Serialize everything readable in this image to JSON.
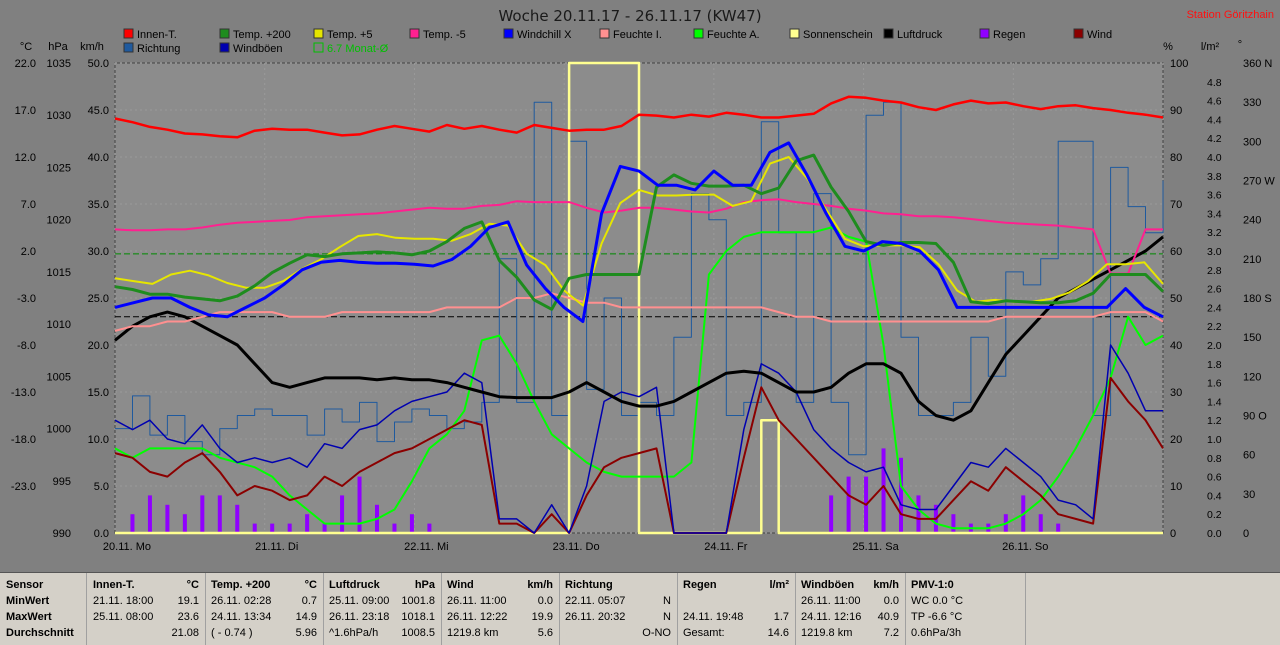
{
  "title": "Woche 20.11.17 - 26.11.17 (KW47)",
  "station": "Station Göritzhain",
  "colors": {
    "inner": "#ff0000",
    "temp200": "#1e8c1e",
    "temp5": "#e6e600",
    "tempm5": "#ff2090",
    "windchill": "#0000ff",
    "feuchteI": "#ff9090",
    "feuchteA": "#00ff00",
    "sonne": "#ffff90",
    "luftdruck": "#000000",
    "regen": "#9000ff",
    "wind": "#8b0000",
    "richtung": "#1f5a9e",
    "windboen": "#0000b0",
    "monat": "#00c000"
  },
  "legend": [
    {
      "label": "Innen-T.",
      "color": "#ff0000"
    },
    {
      "label": "Temp. +200",
      "color": "#1e8c1e"
    },
    {
      "label": "Temp. +5",
      "color": "#e6e600"
    },
    {
      "label": "Temp. -5",
      "color": "#ff2090"
    },
    {
      "label": "Windchill X",
      "color": "#0000ff"
    },
    {
      "label": "Feuchte I.",
      "color": "#ff9090"
    },
    {
      "label": "Feuchte A.",
      "color": "#00ff00"
    },
    {
      "label": "Sonnenschein",
      "color": "#ffff90"
    },
    {
      "label": "Luftdruck",
      "color": "#000000"
    },
    {
      "label": "Regen",
      "color": "#9000ff"
    },
    {
      "label": "Wind",
      "color": "#8b0000"
    },
    {
      "label": "Richtung",
      "color": "#1f5a9e"
    },
    {
      "label": "Windböen",
      "color": "#0000b0"
    },
    {
      "label": "6.7 Monat-Ø",
      "color": "#00c000"
    }
  ],
  "units": [
    "°C",
    "hPa",
    "km/h",
    "%",
    "l/m²",
    "°"
  ],
  "chart_data": {
    "type": "line",
    "x_labels": [
      "20.11. Mo",
      "21.11. Di",
      "22.11. Mi",
      "23.11. Do",
      "24.11. Fr",
      "25.11. Sa",
      "26.11. So"
    ],
    "axis_temp": [
      "22.0",
      "17.0",
      "12.0",
      "7.0",
      "2.0",
      "-3.0",
      "-8.0",
      "-13.0",
      "-18.0",
      "-23.0"
    ],
    "axis_hpa": [
      "1035",
      "1030",
      "1025",
      "1020",
      "1015",
      "1010",
      "1005",
      "1000",
      "995",
      "990"
    ],
    "axis_kmh": [
      "50.0",
      "45.0",
      "40.0",
      "35.0",
      "30.0",
      "25.0",
      "20.0",
      "15.0",
      "10.0",
      "5.0",
      "0.0"
    ],
    "axis_pct": [
      "100",
      "90",
      "80",
      "70",
      "60",
      "50",
      "40",
      "30",
      "20",
      "10",
      "0"
    ],
    "axis_rain": [
      "4.8",
      "4.6",
      "4.4",
      "4.2",
      "4.0",
      "3.8",
      "3.6",
      "3.4",
      "3.2",
      "3.0",
      "2.8",
      "2.6",
      "2.4",
      "2.2",
      "2.0",
      "1.8",
      "1.6",
      "1.4",
      "1.2",
      "1.0",
      "0.8",
      "0.6",
      "0.4",
      "0.2",
      "0.0"
    ],
    "axis_deg": [
      "360 N",
      "330",
      "300",
      "270 W",
      "240",
      "210",
      "180 S",
      "150",
      "120",
      "90 O",
      "60",
      "30",
      "0"
    ],
    "temp_range": [
      -23,
      27
    ],
    "hpa_range": [
      990,
      1040
    ],
    "kmh_range": [
      0,
      50
    ],
    "pct_range": [
      0,
      100
    ],
    "deg_range": [
      0,
      360
    ],
    "month_avg_temp": 6.7,
    "series": [
      {
        "name": "Innen-T.",
        "key": "inner",
        "unit": "°C",
        "values": [
          21.1,
          20.7,
          20.2,
          19.9,
          19.5,
          19.4,
          19.2,
          19.1,
          19.8,
          20.0,
          19.9,
          19.9,
          19.6,
          19.3,
          19.4,
          19.9,
          20.3,
          20.0,
          19.7,
          20.4,
          20.0,
          20.3,
          19.9,
          19.6,
          20.4,
          20.1,
          19.8,
          19.9,
          19.9,
          20.3,
          21.5,
          21.4,
          21.2,
          21.5,
          21.3,
          21.7,
          21.5,
          21.2,
          21.2,
          21.4,
          21.6,
          22.7,
          23.4,
          23.3,
          23.0,
          22.8,
          22.3,
          22.0,
          22.6,
          23.0,
          22.7,
          22.8,
          22.4,
          22.1,
          22.4,
          22.5,
          22.2,
          22.0,
          21.7,
          21.5,
          21.2
        ]
      },
      {
        "name": "Temp. +200",
        "key": "temp200",
        "unit": "°C",
        "values": [
          3.2,
          2.9,
          2.4,
          2.4,
          2.1,
          1.9,
          1.7,
          2.2,
          3.3,
          4.7,
          5.7,
          6.6,
          6.4,
          6.7,
          6.8,
          6.9,
          6.8,
          6.6,
          7.0,
          8.0,
          9.4,
          10.1,
          6.0,
          4.2,
          1.8,
          0.8,
          4.1,
          4.5,
          4.5,
          4.5,
          4.5,
          13.8,
          15.1,
          14.2,
          13.9,
          13.9,
          14.0,
          13.1,
          13.7,
          16.6,
          17.2,
          13.8,
          11.2,
          8.0,
          7.6,
          7.9,
          7.9,
          7.8,
          5.8,
          1.6,
          1.4,
          1.7,
          1.6,
          1.5,
          1.5,
          1.7,
          2.5,
          4.5,
          4.5,
          4.5,
          2.7
        ]
      },
      {
        "name": "Temp. +5",
        "key": "temp5",
        "unit": "°C",
        "values": [
          4.1,
          3.8,
          3.5,
          4.5,
          4.9,
          4.4,
          3.6,
          3.1,
          3.1,
          3.8,
          5.1,
          6.1,
          7.4,
          8.6,
          8.8,
          8.4,
          8.3,
          8.3,
          8.1,
          8.8,
          9.9,
          9.7,
          6.7,
          5.5,
          2.8,
          1.2,
          7.8,
          12.1,
          13.5,
          12.9,
          12.9,
          13.0,
          13.0,
          11.8,
          12.3,
          16.3,
          17.0,
          14.7,
          11.4,
          8.3,
          7.5,
          7.6,
          7.6,
          7.4,
          5.6,
          2.8,
          1.6,
          1.8,
          1.6,
          1.6,
          1.9,
          2.6,
          3.8,
          5.6,
          5.6,
          5.8,
          3.5
        ]
      },
      {
        "name": "Temp. -5",
        "key": "tempm5",
        "unit": "°C",
        "values": [
          9.3,
          9.2,
          9.2,
          9.3,
          9.3,
          9.5,
          9.8,
          10.0,
          10.1,
          10.2,
          10.3,
          10.6,
          10.7,
          10.8,
          10.9,
          11.0,
          11.2,
          11.4,
          11.6,
          11.5,
          11.5,
          11.8,
          11.9,
          12.3,
          12.2,
          12.2,
          12.2,
          11.6,
          11.1,
          11.3,
          11.6,
          11.6,
          11.4,
          11.2,
          11.1,
          11.5,
          12.2,
          12.4,
          12.5,
          12.2,
          12.0,
          11.8,
          11.5,
          11.3,
          11.0,
          10.9,
          10.7,
          10.7,
          10.6,
          10.4,
          10.2,
          10.0,
          9.9,
          9.8,
          9.7,
          9.5,
          9.3,
          4.6,
          4.6,
          9.3,
          9.3
        ]
      },
      {
        "name": "Windchill X",
        "key": "windchill",
        "unit": "°C",
        "values": [
          1.0,
          1.5,
          2.0,
          2.0,
          1.0,
          0.2,
          0.0,
          1.0,
          2.0,
          3.4,
          5.0,
          5.8,
          6.0,
          5.8,
          5.7,
          5.7,
          5.6,
          5.4,
          6.1,
          7.5,
          9.5,
          10.1,
          5.5,
          3.0,
          1.0,
          -0.5,
          11.0,
          16.0,
          15.5,
          14.0,
          14.0,
          13.5,
          15.5,
          14.0,
          14.0,
          17.5,
          18.5,
          15.0,
          11.0,
          7.5,
          7.0,
          8.0,
          7.8,
          7.0,
          5.0,
          1.0,
          1.0,
          1.0,
          1.0,
          1.0,
          1.0,
          1.0,
          1.0,
          1.0,
          3.0,
          1.0,
          0.0
        ]
      },
      {
        "name": "Feuchte I.",
        "key": "feuchteI",
        "unit": "%",
        "values": [
          43,
          44,
          44,
          45,
          45,
          46,
          47,
          47,
          47,
          47,
          46,
          46,
          46,
          47,
          47,
          47,
          47,
          47,
          47,
          48,
          48,
          48,
          48,
          50,
          50,
          51,
          50,
          49,
          49,
          48,
          48,
          48,
          48,
          48,
          48,
          48,
          48,
          48,
          47,
          46,
          46,
          45,
          45,
          45,
          45,
          45,
          45,
          45,
          45,
          45,
          45,
          46,
          46,
          46,
          46,
          46,
          46,
          47,
          47,
          47,
          45
        ]
      },
      {
        "name": "Feuchte A.",
        "key": "feuchteA",
        "unit": "%",
        "values": [
          18,
          16,
          18,
          18,
          18,
          18,
          16,
          15,
          14,
          12,
          8,
          5,
          2,
          2,
          2,
          3,
          5,
          11,
          18,
          21,
          26,
          41,
          42,
          36,
          28,
          21,
          18,
          15,
          13,
          12,
          12,
          12,
          12,
          15,
          55,
          60,
          63,
          64,
          64,
          64,
          64,
          65,
          63,
          62,
          40,
          10,
          5,
          2,
          1,
          1,
          1,
          2,
          4,
          7,
          12,
          18,
          25,
          33,
          46,
          40,
          42
        ]
      },
      {
        "name": "Sonnenschein",
        "key": "sonne",
        "unit": "%",
        "values": [
          0,
          0,
          0,
          0,
          0,
          0,
          0,
          0,
          0,
          0,
          0,
          0,
          0,
          0,
          0,
          0,
          0,
          0,
          0,
          0,
          0,
          0,
          0,
          0,
          0,
          0,
          100,
          100,
          100,
          100,
          0,
          0,
          0,
          0,
          0,
          0,
          0,
          24,
          0,
          0,
          0,
          0,
          0,
          0,
          0,
          0,
          0,
          0,
          0,
          0,
          0,
          0,
          0,
          0,
          0,
          0,
          0,
          0,
          0,
          0,
          0
        ]
      },
      {
        "name": "Luftdruck",
        "key": "luftdruck",
        "unit": "hPa",
        "values": [
          1010.5,
          1012,
          1013,
          1013.5,
          1013,
          1012,
          1011,
          1010,
          1008,
          1006,
          1005.5,
          1006,
          1006.5,
          1006.5,
          1006.5,
          1006.3,
          1006.5,
          1006.3,
          1006.3,
          1006,
          1005.5,
          1005,
          1004.5,
          1004.4,
          1004.4,
          1004.4,
          1005,
          1006,
          1005,
          1004,
          1003.5,
          1003.5,
          1004,
          1005,
          1006,
          1007,
          1007.2,
          1007,
          1006,
          1005,
          1005,
          1005.5,
          1007,
          1008,
          1008,
          1007,
          1004,
          1002.5,
          1002,
          1003,
          1006,
          1009,
          1011,
          1013,
          1015,
          1016,
          1017,
          1018,
          1019,
          1020,
          1021.5
        ]
      },
      {
        "name": "Regen",
        "key": "regen",
        "unit": "l/m²",
        "values": [
          0,
          0.2,
          0.4,
          0.3,
          0.2,
          0.4,
          0.4,
          0.3,
          0.1,
          0.1,
          0.1,
          0.2,
          0.1,
          0.4,
          0.6,
          0.3,
          0.1,
          0.2,
          0.1,
          0,
          0,
          0,
          0,
          0,
          0,
          0,
          0,
          0,
          0,
          0,
          0,
          0,
          0,
          0,
          0,
          0,
          0,
          0,
          0,
          0,
          0,
          0.4,
          0.6,
          0.6,
          0.9,
          0.8,
          0.4,
          0.3,
          0.2,
          0.1,
          0.1,
          0.2,
          0.4,
          0.2,
          0.1,
          0,
          0,
          0,
          0,
          0,
          0
        ]
      },
      {
        "name": "Wind",
        "key": "wind",
        "unit": "km/h",
        "values": [
          8.5,
          8,
          6.5,
          6,
          7.5,
          8.5,
          6.5,
          4,
          5,
          4.5,
          3.5,
          4,
          6,
          5,
          6.5,
          7.5,
          8.5,
          9,
          10,
          11,
          12,
          11.5,
          1,
          1,
          0,
          2,
          0,
          4,
          7,
          8,
          8.5,
          9,
          0,
          0,
          0,
          0,
          8,
          15.5,
          12,
          10,
          8,
          6,
          4,
          3,
          5,
          2,
          1.5,
          1.5,
          3.5,
          5.5,
          4.5,
          7,
          5.5,
          4,
          2,
          1.5,
          1,
          16.5,
          14,
          12,
          9
        ]
      },
      {
        "name": "Richtung",
        "key": "richtung",
        "unit": "°",
        "values": [
          80,
          105,
          75,
          90,
          70,
          60,
          80,
          90,
          95,
          90,
          90,
          75,
          95,
          85,
          100,
          70,
          85,
          95,
          90,
          80,
          85,
          100,
          210,
          100,
          330,
          90,
          300,
          110,
          180,
          90,
          100,
          90,
          150,
          260,
          240,
          90,
          100,
          315,
          230,
          100,
          260,
          100,
          60,
          320,
          330,
          150,
          90,
          90,
          100,
          150,
          120,
          200,
          190,
          210,
          300,
          300,
          90,
          280,
          250,
          230,
          270
        ]
      },
      {
        "name": "Windböen",
        "key": "windboen",
        "unit": "km/h",
        "values": [
          12,
          11,
          12,
          10,
          9.5,
          11.5,
          9,
          7.5,
          8,
          7.5,
          8,
          7,
          9.5,
          9,
          11,
          11.5,
          13,
          14,
          14.5,
          15,
          17,
          16,
          1.5,
          1.5,
          0,
          3,
          0,
          5,
          14,
          15,
          14.5,
          15.5,
          0,
          0,
          0,
          0,
          11,
          18,
          17,
          15,
          11,
          9,
          7.5,
          6.5,
          7,
          3,
          2.5,
          2.5,
          5,
          7.5,
          7,
          9,
          7.5,
          6,
          3.5,
          3,
          1.5,
          20,
          17,
          13,
          13
        ]
      }
    ]
  },
  "table": {
    "row_labels": [
      "Sensor",
      "MinWert",
      "MaxWert",
      "Durchschnitt"
    ],
    "columns": [
      {
        "name": "Innen-T.",
        "unit": "°C",
        "min_t": "21.11.  18:00",
        "min_v": "19.1",
        "max_t": "25.11.  08:00",
        "max_v": "23.6",
        "avg_t": "",
        "avg_v": "21.08"
      },
      {
        "name": "Temp. +200",
        "unit": "°C",
        "min_t": "26.11.  02:28",
        "min_v": "0.7",
        "max_t": "24.11.  13:34",
        "max_v": "14.9",
        "avg_t": "( - 0.74 )",
        "avg_v": "5.96"
      },
      {
        "name": "Luftdruck",
        "unit": "hPa",
        "min_t": "25.11.  09:00",
        "min_v": "1001.8",
        "max_t": "26.11.  23:18",
        "max_v": "1018.1",
        "avg_t": "^1.6hPa/h",
        "avg_v": "1008.5"
      },
      {
        "name": "Wind",
        "unit": "km/h",
        "min_t": "26.11.  11:00",
        "min_v": "0.0",
        "max_t": "26.11.  12:22",
        "max_v": "19.9",
        "avg_t": "1219.8 km",
        "avg_v": "5.6"
      },
      {
        "name": "Richtung",
        "unit": "",
        "min_t": "22.11.  05:07",
        "min_v": "N",
        "max_t": "26.11.  20:32",
        "max_v": "N",
        "avg_t": "",
        "avg_v": "O-NO"
      },
      {
        "name": "Regen",
        "unit": "l/m²",
        "min_t": "",
        "min_v": "",
        "max_t": "24.11.  19:48",
        "max_v": "1.7",
        "avg_t": "Gesamt:",
        "avg_v": "14.6"
      },
      {
        "name": "Windböen",
        "unit": "km/h",
        "min_t": "26.11.  11:00",
        "min_v": "0.0",
        "max_t": "24.11.  12:16",
        "max_v": "40.9",
        "avg_t": "1219.8 km",
        "avg_v": "7.2"
      },
      {
        "name": "PMV-1:0",
        "unit": "",
        "min_t": "WC 0.0 °C",
        "min_v": "",
        "max_t": "TP -6.6 °C",
        "max_v": "",
        "avg_t": "0.6hPa/3h",
        "avg_v": ""
      }
    ]
  }
}
